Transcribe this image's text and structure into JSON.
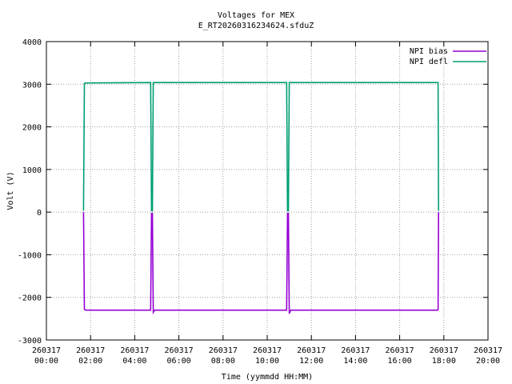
{
  "chart_data": {
    "type": "line",
    "title": "Voltages for MEX",
    "subtitle": "E_RT20260316234624.sfduZ",
    "xlabel": "Time (yymmdd HH:MM)",
    "ylabel": "Volt (V)",
    "xlim": [
      0,
      20
    ],
    "ylim": [
      -3000,
      4000
    ],
    "x_ticks": [
      {
        "value": 0,
        "date": "260317",
        "time": "00:00"
      },
      {
        "value": 2,
        "date": "260317",
        "time": "02:00"
      },
      {
        "value": 4,
        "date": "260317",
        "time": "04:00"
      },
      {
        "value": 6,
        "date": "260317",
        "time": "06:00"
      },
      {
        "value": 8,
        "date": "260317",
        "time": "08:00"
      },
      {
        "value": 10,
        "date": "260317",
        "time": "10:00"
      },
      {
        "value": 12,
        "date": "260317",
        "time": "12:00"
      },
      {
        "value": 14,
        "date": "260317",
        "time": "14:00"
      },
      {
        "value": 16,
        "date": "260317",
        "time": "16:00"
      },
      {
        "value": 18,
        "date": "260317",
        "time": "18:00"
      },
      {
        "value": 20,
        "date": "260317",
        "time": "20:00"
      }
    ],
    "y_ticks": [
      -3000,
      -2000,
      -1000,
      0,
      1000,
      2000,
      3000,
      4000
    ],
    "grid": true,
    "legend_position": "top-right",
    "series": [
      {
        "name": "NPI bias",
        "color": "#9400d3",
        "x": [
          1.68,
          1.72,
          1.78,
          4.72,
          4.76,
          4.8,
          4.84,
          4.9,
          10.88,
          10.92,
          10.96,
          11.0,
          11.06,
          17.72,
          17.74,
          17.76
        ],
        "y": [
          0,
          -2280,
          -2300,
          -2300,
          -30,
          -30,
          -2350,
          -2300,
          -2300,
          -30,
          -30,
          -2380,
          -2300,
          -2300,
          -2290,
          0
        ]
      },
      {
        "name": "NPI defl",
        "color": "#009e73",
        "x": [
          1.68,
          1.72,
          1.78,
          4.72,
          4.76,
          4.8,
          4.84,
          4.9,
          10.88,
          10.92,
          10.96,
          11.0,
          11.06,
          17.72,
          17.74,
          17.76
        ],
        "y": [
          30,
          3020,
          3030,
          3040,
          30,
          30,
          3040,
          3040,
          3040,
          30,
          30,
          3040,
          3040,
          3040,
          3040,
          30
        ]
      }
    ]
  }
}
